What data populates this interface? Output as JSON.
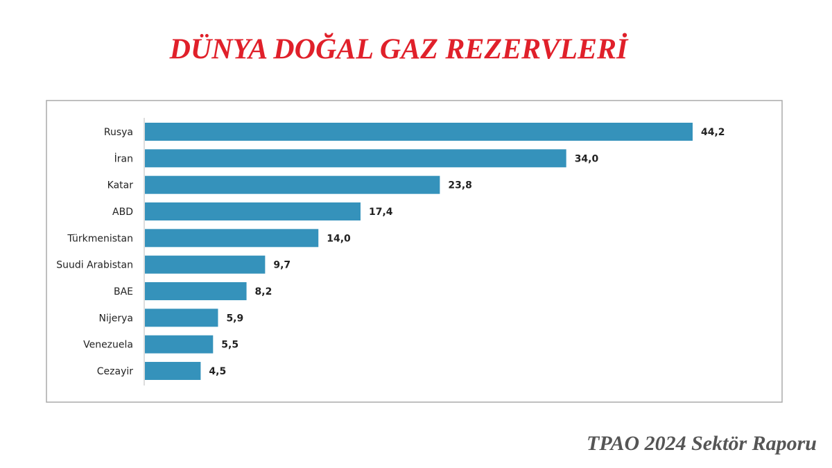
{
  "chart_data": {
    "type": "barh",
    "title": "DÜNYA DOĞAL GAZ REZERVLERİ",
    "categories": [
      "Rusya",
      "İran",
      "Katar",
      "ABD",
      "Türkmenistan",
      "Suudi Arabistan",
      "BAE",
      "Nijerya",
      "Venezuela",
      "Cezayir"
    ],
    "values": [
      44.2,
      34.0,
      23.8,
      17.4,
      14.0,
      9.7,
      8.2,
      5.9,
      5.5,
      4.5
    ],
    "value_labels": [
      "44,2",
      "34,0",
      "23,8",
      "17,4",
      "14,0",
      "9,7",
      "8,2",
      "5,9",
      "5,5",
      "4,5"
    ],
    "color": "#3592bb",
    "source": "TPAO 2024 Sektör Raporu"
  }
}
